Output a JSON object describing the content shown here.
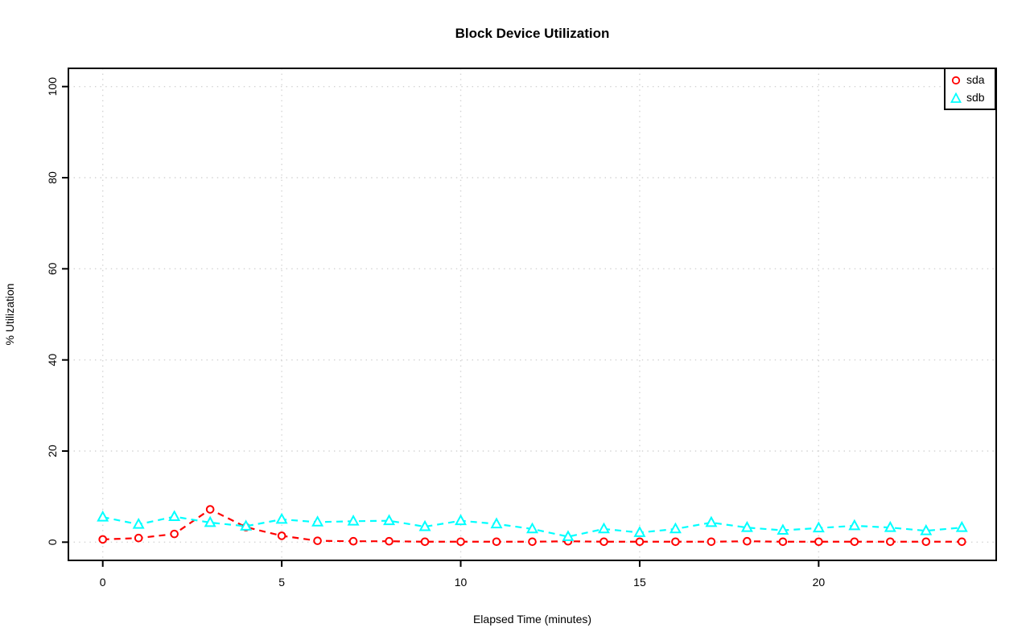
{
  "title": "Block Device Utilization",
  "axes": {
    "x": {
      "label": "Elapsed Time (minutes)",
      "ticks": [
        0,
        5,
        10,
        15,
        20
      ],
      "range": [
        0,
        24
      ],
      "pad_frac": 0.04
    },
    "y": {
      "label": "% Utilization",
      "ticks": [
        0,
        20,
        40,
        60,
        80,
        100
      ],
      "range": [
        0,
        100
      ],
      "pad_frac": 0.04
    }
  },
  "colors": {
    "background": "#FFFFFF",
    "axis": "#000000",
    "grid": "#D3D3D3",
    "sda": "#FF0000",
    "sdb": "#00FFFF"
  },
  "legend": {
    "position": "top-right"
  },
  "chart_data": {
    "type": "line",
    "title": "Block Device Utilization",
    "xlabel": "Elapsed Time (minutes)",
    "ylabel": "% Utilization",
    "xlim": [
      0,
      24
    ],
    "ylim": [
      0,
      100
    ],
    "grid": true,
    "legend_position": "top-right",
    "x": [
      0,
      1,
      2,
      3,
      4,
      5,
      6,
      7,
      8,
      9,
      10,
      11,
      12,
      13,
      14,
      15,
      16,
      17,
      18,
      19,
      20,
      21,
      22,
      23,
      24
    ],
    "series": [
      {
        "name": "sda",
        "color": "#FF0000",
        "marker": "circle",
        "linestyle": "dashed",
        "values": [
          0.6,
          0.9,
          1.8,
          7.2,
          3.3,
          1.4,
          0.3,
          0.2,
          0.2,
          0.1,
          0.1,
          0.1,
          0.1,
          0.2,
          0.1,
          0.1,
          0.1,
          0.1,
          0.2,
          0.1,
          0.1,
          0.1,
          0.1,
          0.1,
          0.1
        ]
      },
      {
        "name": "sdb",
        "color": "#00FFFF",
        "marker": "triangle",
        "linestyle": "dashed",
        "values": [
          5.5,
          3.9,
          5.6,
          4.3,
          3.5,
          5.0,
          4.4,
          4.6,
          4.7,
          3.4,
          4.7,
          4.0,
          2.9,
          1.2,
          2.9,
          2.1,
          2.9,
          4.3,
          3.2,
          2.6,
          3.1,
          3.6,
          3.2,
          2.5,
          3.2
        ]
      }
    ]
  }
}
